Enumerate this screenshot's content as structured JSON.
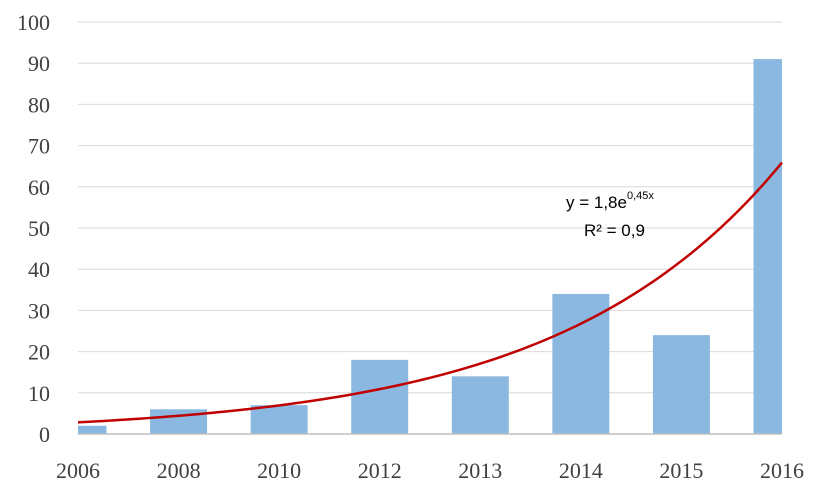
{
  "chart_data": {
    "type": "bar",
    "categories": [
      "2006",
      "2008",
      "2010",
      "2012",
      "2013",
      "2014",
      "2015",
      "2016"
    ],
    "values": [
      2,
      6,
      7,
      18,
      14,
      34,
      24,
      91
    ],
    "ylim": [
      0,
      100
    ],
    "yticks": [
      0,
      10,
      20,
      30,
      40,
      50,
      60,
      70,
      80,
      90,
      100
    ],
    "grid": true,
    "trendline": {
      "type": "exponential",
      "a": 1.8,
      "b": 0.45,
      "equation_prefix": "y = 1,8e",
      "equation_exponent": "0,45x",
      "r_squared": "R² = 0,9",
      "color": "#c00000"
    },
    "bar_color": "#8bb8e0",
    "title": "",
    "xlabel": "",
    "ylabel": ""
  }
}
